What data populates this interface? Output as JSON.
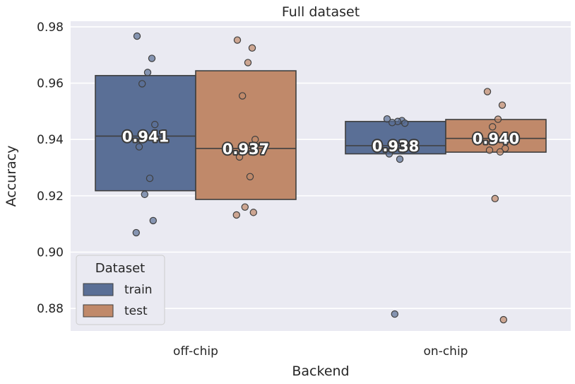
{
  "chart_data": {
    "type": "box",
    "title": "Full dataset",
    "xlabel": "Backend",
    "ylabel": "Accuracy",
    "ylim": [
      0.872,
      0.982
    ],
    "yticks": [
      "0.88",
      "0.90",
      "0.92",
      "0.94",
      "0.96",
      "0.98"
    ],
    "grid": true,
    "categories": [
      "off-chip",
      "on-chip"
    ],
    "legend": {
      "title": "Dataset",
      "placement": "lower-left"
    },
    "colors": {
      "train": "#5a6f96",
      "test": "#c0896a",
      "background": "#eaeaf2"
    },
    "series": [
      {
        "name": "train",
        "boxes": [
          {
            "q1": 0.9218,
            "median": 0.9412,
            "q3": 0.9627,
            "label": "0.941",
            "points": [
              0.9767,
              0.9688,
              0.9638,
              0.9598,
              0.9453,
              0.9374,
              0.9262,
              0.9205,
              0.9112,
              0.9069
            ]
          },
          {
            "q1": 0.9349,
            "median": 0.9378,
            "q3": 0.9464,
            "label": "0.938",
            "points": [
              0.9473,
              0.9467,
              0.9464,
              0.946,
              0.9458,
              0.9349,
              0.933,
              0.878
            ]
          }
        ]
      },
      {
        "name": "test",
        "boxes": [
          {
            "q1": 0.9187,
            "median": 0.9368,
            "q3": 0.9644,
            "label": "0.937",
            "points": [
              0.9753,
              0.9725,
              0.9673,
              0.9555,
              0.94,
              0.9338,
              0.9268,
              0.916,
              0.9141,
              0.9132
            ]
          },
          {
            "q1": 0.9355,
            "median": 0.9404,
            "q3": 0.9471,
            "label": "0.940",
            "points": [
              0.957,
              0.9522,
              0.9472,
              0.9445,
              0.9368,
              0.9362,
              0.9356,
              0.919,
              0.876
            ]
          }
        ]
      }
    ]
  }
}
